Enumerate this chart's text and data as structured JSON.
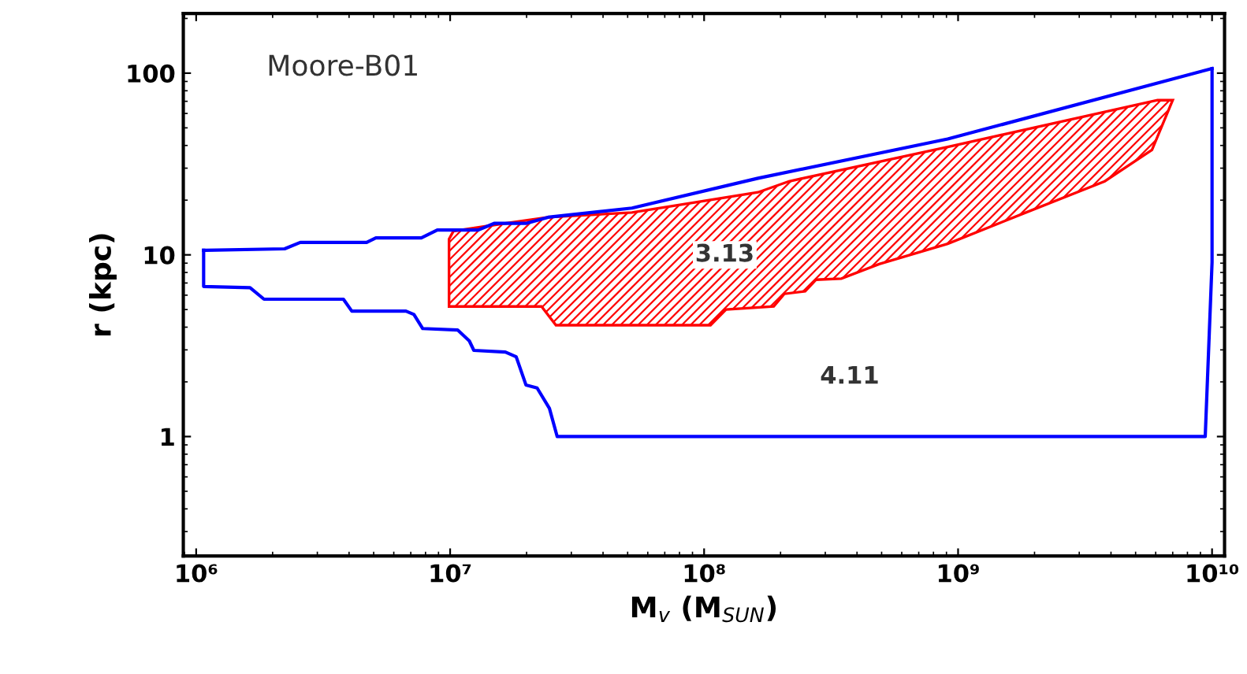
{
  "chart_data": {
    "type": "line",
    "xlabel": "M$_{v}$ (M$_{SUN}$)",
    "ylabel": "r (kpc)",
    "log": "xy",
    "xlim": [
      890000,
      11200000000
    ],
    "ylim": [
      0.22,
      213
    ],
    "xticks": [
      {
        "value": 1000000,
        "label": "10⁶"
      },
      {
        "value": 10000000,
        "label": "10⁷"
      },
      {
        "value": 100000000,
        "label": "10⁸"
      },
      {
        "value": 1000000000,
        "label": "10⁹"
      },
      {
        "value": 10000000000,
        "label": "10¹⁰"
      }
    ],
    "yticks": [
      1,
      10,
      100
    ],
    "annotations": [
      "Moore-B01",
      "3.13",
      "4.11"
    ],
    "series": [
      {
        "color": "#0000ff",
        "x": [
          1070000,
          1090000,
          2230000,
          2570000,
          4690000,
          5100000,
          7700000,
          8900000,
          12900000,
          14900000,
          19900000,
          24300000,
          52000000,
          163000000,
          910000000,
          10000000000
        ],
        "values": [
          10.6,
          10.6,
          10.8,
          11.7,
          11.7,
          12.4,
          12.4,
          13.7,
          13.7,
          14.9,
          14.9,
          16.1,
          18.1,
          26.4,
          43.4,
          106
        ]
      },
      {
        "color": "#0000ff",
        "x": [
          1070000,
          1070000,
          1630000,
          1850000,
          3800000,
          4100000,
          6700000,
          7200000,
          7800000,
          10700000,
          11900000,
          12400000,
          16500000,
          18200000,
          19900000,
          22000000,
          24600000,
          26400000,
          9400000000,
          10000000000,
          10000000000
        ],
        "values": [
          10.6,
          6.7,
          6.6,
          5.7,
          5.7,
          4.9,
          4.9,
          4.7,
          3.93,
          3.86,
          3.36,
          2.98,
          2.92,
          2.75,
          1.92,
          1.85,
          1.43,
          1,
          1,
          9.1,
          106
        ]
      },
      {
        "type": "area",
        "color": "#ff0000",
        "x": [
          9900000,
          9900000,
          22900000,
          26100000,
          106000000,
          122000000,
          188000000,
          207000000,
          250000000,
          276000000,
          347000000,
          489000000,
          910000000,
          1850000000,
          3780000000,
          5800000000,
          7000000000,
          6100000000,
          910000000,
          216000000,
          163000000,
          52000000,
          24300000,
          14900000,
          10300000
        ],
        "values": [
          12.2,
          5.2,
          5.2,
          4.1,
          4.1,
          5.0,
          5.2,
          6.1,
          6.3,
          7.3,
          7.4,
          8.9,
          11.5,
          17.1,
          25.4,
          37.8,
          71,
          71,
          39.3,
          25.4,
          22.1,
          17.1,
          16.1,
          14.6,
          13.5
        ]
      }
    ]
  }
}
